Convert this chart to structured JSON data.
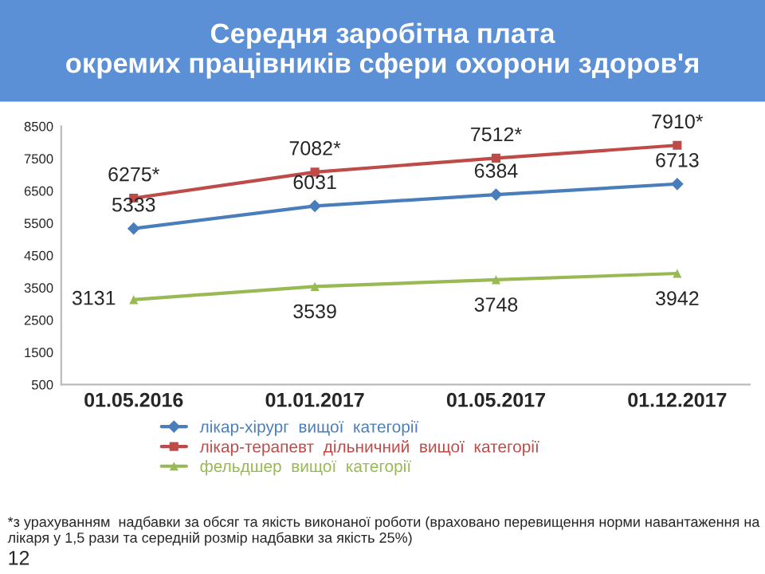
{
  "chart_data": {
    "type": "line",
    "title": "Середня заробітна плата\nокремих працівників сфери охорони здоров'я",
    "categories": [
      "01.05.2016",
      "01.01.2017",
      "01.05.2017",
      "01.12.2017"
    ],
    "series": [
      {
        "name": "лікар-хірург  вищої  категорії",
        "color": "#4a7ebb",
        "marker": "diamond",
        "values": [
          5333,
          6031,
          6384,
          6713
        ],
        "value_labels": [
          "5333",
          "6031",
          "6384",
          "6713"
        ]
      },
      {
        "name": "лікар-терапевт  дільничний  вищої  категорії",
        "color": "#be4b48",
        "marker": "square",
        "values": [
          6275,
          7082,
          7512,
          7910
        ],
        "value_labels": [
          "6275*",
          "7082*",
          "7512*",
          "7910*"
        ]
      },
      {
        "name": "фельдшер  вищої  категорії",
        "color": "#98b954",
        "marker": "triangle",
        "values": [
          3131,
          3539,
          3748,
          3942
        ],
        "value_labels": [
          "3131",
          "3539",
          "3748",
          "3942"
        ]
      }
    ],
    "ylim": [
      500,
      8500
    ],
    "yticks": [
      500,
      1500,
      2500,
      3500,
      4500,
      5500,
      6500,
      7500,
      8500
    ],
    "grid": false,
    "legend": "bottom",
    "annotations": [
      "*з урахуванням  надбавки за обсяг та якість виконаної роботи (враховано перевищення норми навантаження на лікаря у 1,5 рази та середній розмір надбавки за якість 25%)",
      "12"
    ]
  }
}
